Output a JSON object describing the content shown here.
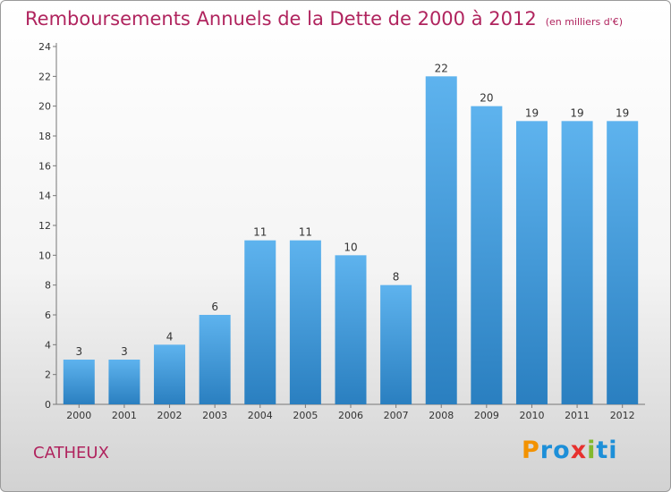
{
  "title": "Remboursements Annuels de la Dette de 2000 à 2012",
  "unit_note": "(en milliers d'€)",
  "commune": "CATHEUX",
  "logo": {
    "text": "Proxiti",
    "letters": [
      "P",
      "r",
      "o",
      "x",
      "i",
      "t",
      "i"
    ],
    "colors": [
      "#f39200",
      "#1d8fd8",
      "#1d8fd8",
      "#e7312e",
      "#83b92d",
      "#1d8fd8",
      "#1d8fd8"
    ]
  },
  "chart_data": {
    "type": "bar",
    "title": "Remboursements Annuels de la Dette de 2000 à 2012",
    "xlabel": "",
    "ylabel": "",
    "categories": [
      "2000",
      "2001",
      "2002",
      "2003",
      "2004",
      "2005",
      "2006",
      "2007",
      "2008",
      "2009",
      "2010",
      "2011",
      "2012"
    ],
    "values": [
      3,
      3,
      4,
      6,
      11,
      11,
      10,
      8,
      22,
      20,
      19,
      19,
      19
    ],
    "ylim": [
      0,
      24
    ],
    "yticks": [
      0,
      2,
      4,
      6,
      8,
      10,
      12,
      14,
      16,
      18,
      20,
      22,
      24
    ],
    "grid": false,
    "legend": "none",
    "bar_color_top": "#5eb3ee",
    "bar_color_bottom": "#2a7fc0"
  }
}
